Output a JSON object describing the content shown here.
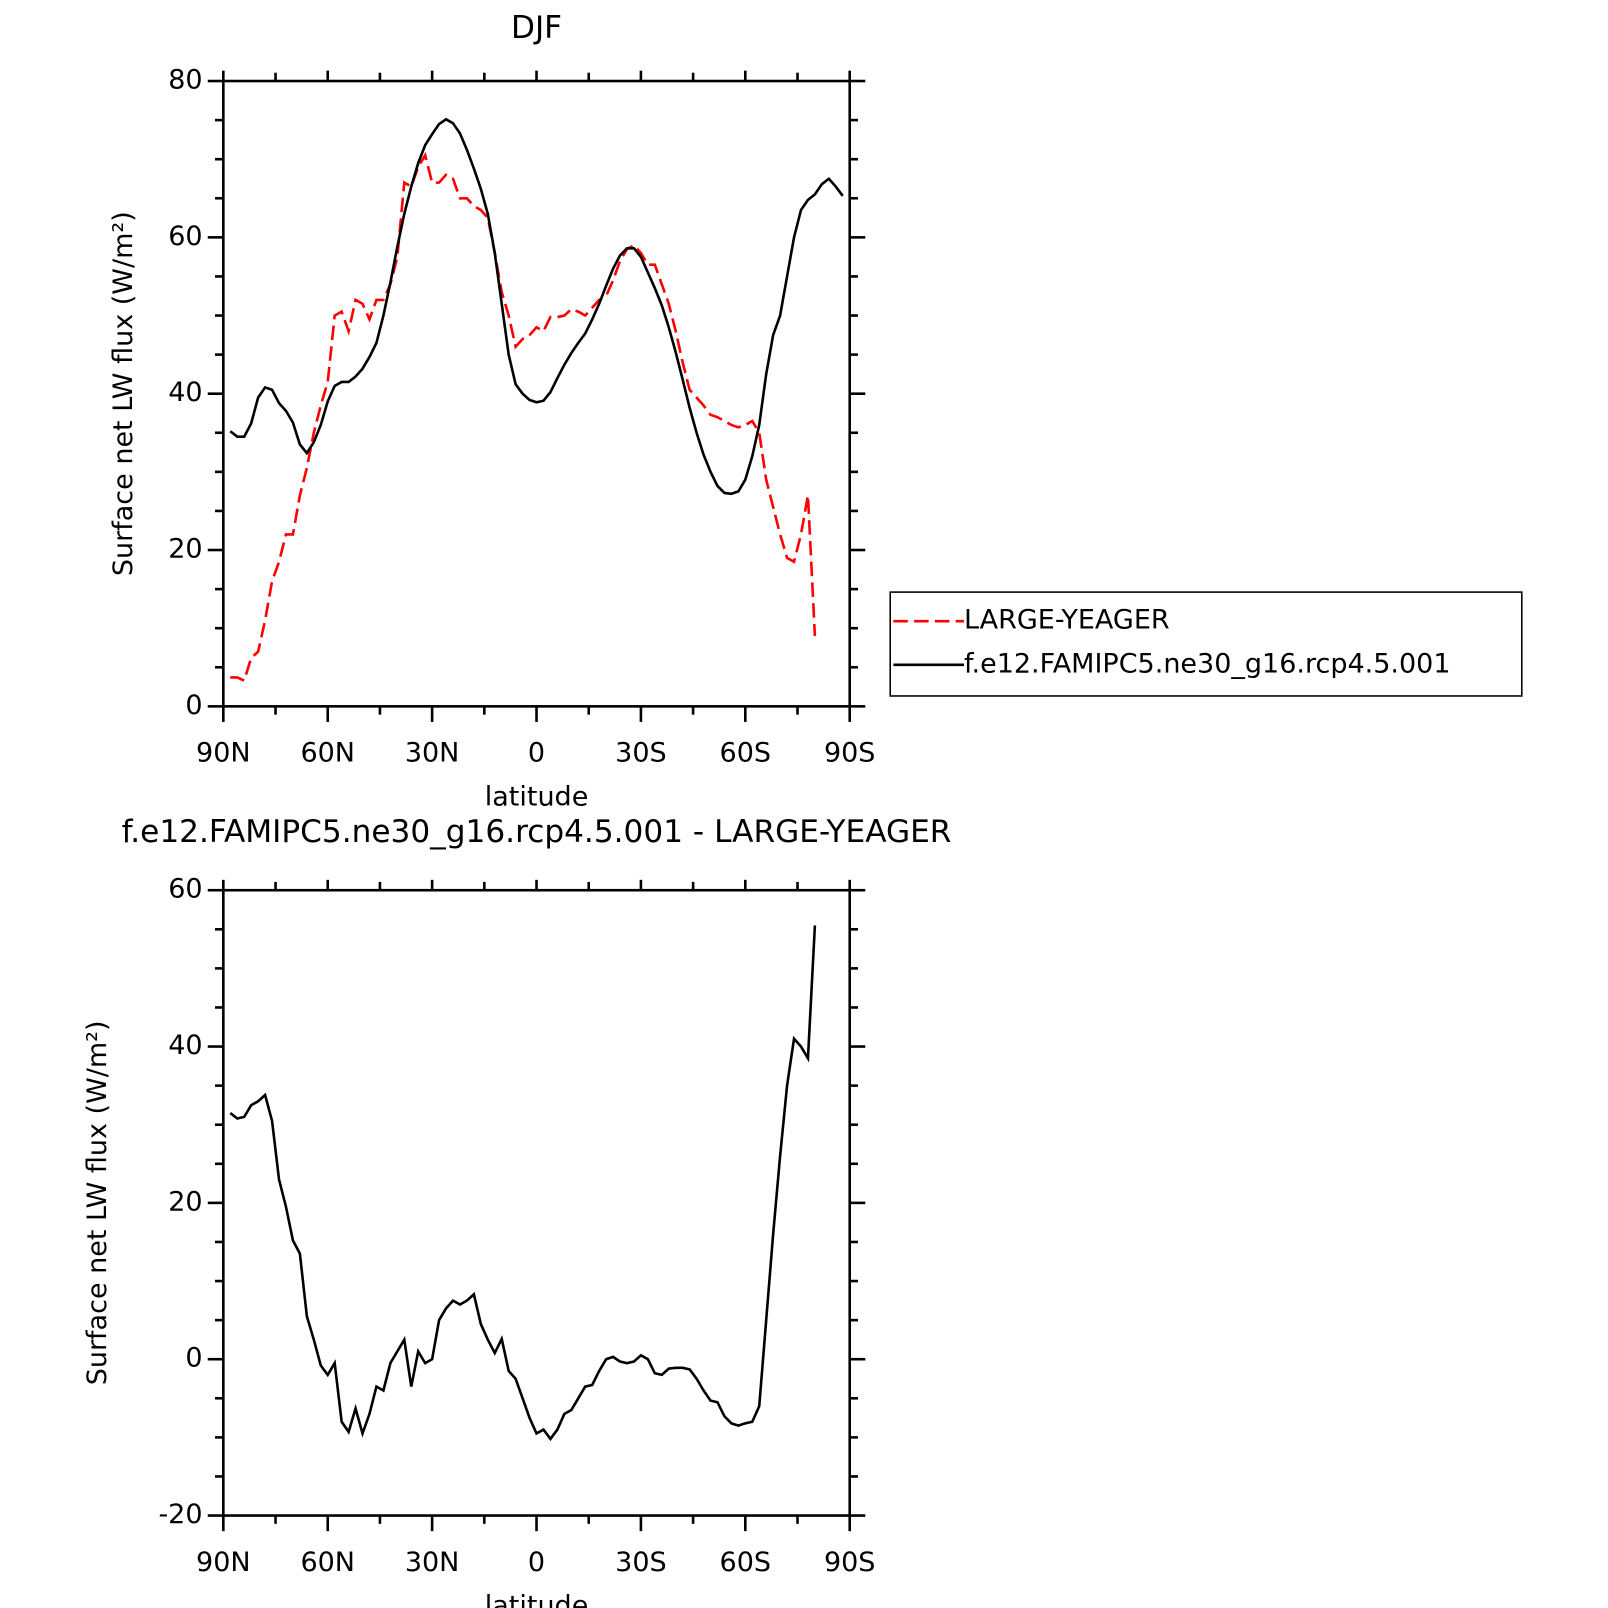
{
  "chart_data": [
    {
      "type": "line",
      "title": "DJF",
      "xlabel": "latitude",
      "ylabel": "Surface net LW flux (W/m²)",
      "x": [
        88,
        86,
        84,
        82,
        80,
        78,
        76,
        74,
        72,
        70,
        68,
        66,
        64,
        62,
        60,
        58,
        56,
        54,
        52,
        50,
        48,
        46,
        44,
        42,
        40,
        38,
        36,
        34,
        32,
        30,
        28,
        26,
        24,
        22,
        20,
        18,
        16,
        14,
        12,
        10,
        8,
        6,
        4,
        2,
        0,
        -2,
        -4,
        -6,
        -8,
        -10,
        -12,
        -14,
        -16,
        -18,
        -20,
        -22,
        -24,
        -26,
        -28,
        -30,
        -32,
        -34,
        -36,
        -38,
        -40,
        -42,
        -44,
        -46,
        -48,
        -50,
        -52,
        -54,
        -56,
        -58,
        -60,
        -62,
        -64,
        -66,
        -68,
        -70,
        -72,
        -74,
        -76,
        -78,
        -80,
        -82,
        -84,
        -86,
        -88
      ],
      "series": [
        {
          "name": "LARGE-YEAGER",
          "color": "#ff0000",
          "dash": "dashed",
          "values": [
            3.7,
            3.7,
            3.3,
            6.2,
            7,
            11,
            16,
            18.5,
            22,
            22,
            27,
            30.5,
            35,
            38.5,
            41.5,
            50,
            50.5,
            48,
            52,
            51.5,
            49.5,
            52,
            52,
            54,
            57.5,
            67,
            66.5,
            69,
            70.5,
            67,
            67,
            68,
            67.5,
            65,
            65,
            64,
            63.5,
            62.5,
            58,
            53,
            50,
            46,
            47,
            47.5,
            48.5,
            48,
            49.8,
            49.8,
            50,
            50.8,
            50.5,
            50,
            51,
            52,
            52.5,
            54.5,
            57,
            58.5,
            59,
            58,
            56.5,
            56.5,
            54,
            51.5,
            48,
            44,
            40.5,
            39.5,
            38.5,
            37.3,
            37,
            36.5,
            36,
            35.7,
            36,
            36.5,
            35,
            29,
            25.5,
            22,
            19,
            18.5,
            22,
            27,
            9,
            null,
            null,
            null,
            null
          ]
        },
        {
          "name": "f.e12.FAMIPC5.ne30_g16.rcp4.5.001",
          "color": "#000000",
          "dash": "solid",
          "values": [
            35.2,
            34.5,
            34.5,
            36.2,
            39.5,
            40.8,
            40.5,
            38.8,
            37.8,
            36.3,
            33.5,
            32.4,
            33.8,
            36,
            39,
            41,
            41.5,
            41.5,
            42.2,
            43.2,
            44.7,
            46.5,
            50,
            54.2,
            58.8,
            63,
            66.5,
            69.5,
            71.8,
            73.2,
            74.5,
            75.1,
            74.6,
            73.3,
            71.2,
            68.8,
            66.2,
            63,
            58,
            51.5,
            45,
            41.2,
            40,
            39.2,
            38.9,
            39.1,
            40.2,
            42,
            43.7,
            45.2,
            46.5,
            47.7,
            49.5,
            51.5,
            53.8,
            56,
            57.7,
            58.6,
            58.6,
            57.5,
            55.5,
            53.5,
            51.3,
            48.5,
            45.3,
            41.8,
            38.2,
            35,
            32.2,
            30,
            28.2,
            27.3,
            27.2,
            27.5,
            29,
            32,
            36,
            42.5,
            47.5,
            50,
            55,
            60,
            63.5,
            64.8,
            65.5,
            66.8,
            67.5,
            66.5,
            65.3
          ]
        }
      ],
      "legend": "right",
      "xlim": [
        90,
        -90
      ],
      "xticks": [
        {
          "value": 90,
          "label": "90N"
        },
        {
          "value": 60,
          "label": "60N"
        },
        {
          "value": 30,
          "label": "30N"
        },
        0,
        {
          "value": -30,
          "label": "30S"
        },
        {
          "value": -60,
          "label": "60S"
        },
        {
          "value": -90,
          "label": "90S"
        }
      ],
      "xminorticks": [
        75,
        45,
        15,
        -15,
        -45,
        -75
      ],
      "ylim": [
        0,
        80
      ],
      "yticks": [
        0,
        20,
        40,
        60,
        80
      ],
      "yminorticks": [
        5,
        10,
        15,
        25,
        30,
        35,
        45,
        50,
        55,
        65,
        70,
        75
      ]
    },
    {
      "type": "line",
      "title": "f.e12.FAMIPC5.ne30_g16.rcp4.5.001 - LARGE-YEAGER",
      "xlabel": "latitude",
      "ylabel": "Surface net LW flux (W/m²)",
      "x": [
        88,
        86,
        84,
        82,
        80,
        78,
        76,
        74,
        72,
        70,
        68,
        66,
        64,
        62,
        60,
        58,
        56,
        54,
        52,
        50,
        48,
        46,
        44,
        42,
        40,
        38,
        36,
        34,
        32,
        30,
        28,
        26,
        24,
        22,
        20,
        18,
        16,
        14,
        12,
        10,
        8,
        6,
        4,
        2,
        0,
        -2,
        -4,
        -6,
        -8,
        -10,
        -12,
        -14,
        -16,
        -18,
        -20,
        -22,
        -24,
        -26,
        -28,
        -30,
        -32,
        -34,
        -36,
        -38,
        -40,
        -42,
        -44,
        -46,
        -48,
        -50,
        -52,
        -54,
        -56,
        -58,
        -60,
        -62,
        -64,
        -66,
        -68,
        -70,
        -72,
        -74,
        -76,
        -78,
        -80,
        -82,
        -84,
        -86,
        -88
      ],
      "color": "#000000",
      "values": [
        31.5,
        30.8,
        31,
        32.5,
        33,
        33.8,
        30.5,
        23,
        19.5,
        15.2,
        13.5,
        5.5,
        2.5,
        -0.8,
        -2,
        -0.5,
        -8,
        -9.3,
        -6.3,
        -9.5,
        -7,
        -3.5,
        -4,
        -0.5,
        1,
        2.5,
        -3.5,
        1,
        -0.5,
        0,
        5,
        6.5,
        7.5,
        7,
        7.5,
        8.3,
        4.5,
        2.5,
        0.8,
        2.6,
        -1.5,
        -2.5,
        -5,
        -7.5,
        -9.5,
        -9,
        -10.2,
        -9,
        -7,
        -6.5,
        -5,
        -3.5,
        -3.3,
        -1.5,
        0,
        0.3,
        -0.3,
        -0.5,
        -0.3,
        0.5,
        0,
        -1.8,
        -2,
        -1.2,
        -1.1,
        -1.1,
        -1.3,
        -2.5,
        -4,
        -5.3,
        -5.5,
        -7.3,
        -8.2,
        -8.5,
        -8.2,
        -8,
        -6,
        5,
        16,
        26,
        35,
        41,
        40,
        38.5,
        55.5,
        null,
        null,
        null,
        null
      ],
      "xlim": [
        90,
        -90
      ],
      "xticks": [
        {
          "value": 90,
          "label": "90N"
        },
        {
          "value": 60,
          "label": "60N"
        },
        {
          "value": 30,
          "label": "30N"
        },
        0,
        {
          "value": -30,
          "label": "30S"
        },
        {
          "value": -60,
          "label": "60S"
        },
        {
          "value": -90,
          "label": "90S"
        }
      ],
      "xminorticks": [
        75,
        45,
        15,
        -15,
        -45,
        -75
      ],
      "ylim": [
        -20,
        60
      ],
      "yticks": [
        -20,
        0,
        20,
        40,
        60
      ],
      "yminorticks": [
        -15,
        -10,
        -5,
        5,
        10,
        15,
        25,
        30,
        35,
        45,
        50,
        55
      ]
    }
  ]
}
